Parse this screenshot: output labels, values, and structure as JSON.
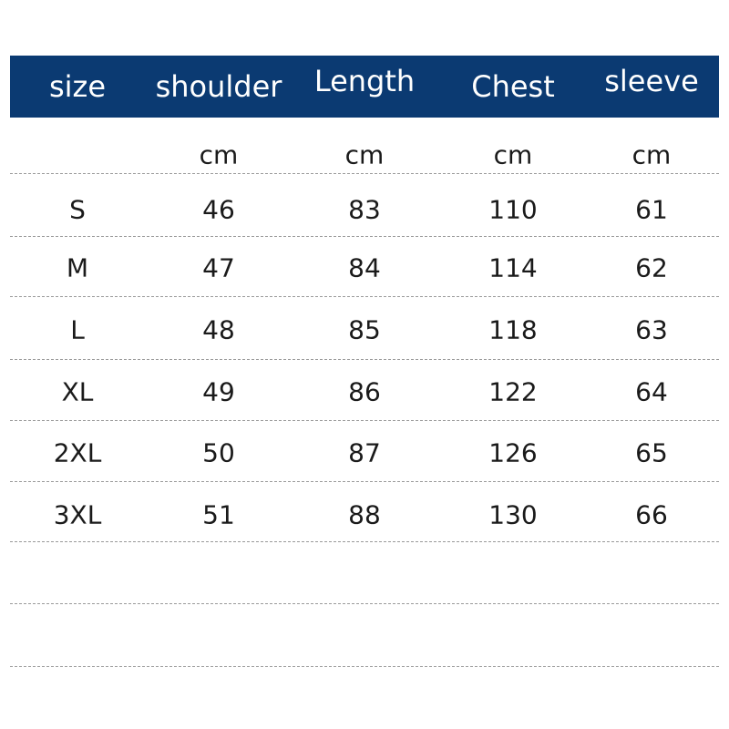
{
  "headers": [
    "size",
    "shoulder",
    "Length",
    "Chest",
    "sleeve"
  ],
  "units": [
    "",
    "cm",
    "cm",
    "cm",
    "cm"
  ],
  "rows": [
    [
      "S",
      "46",
      "83",
      "110",
      "61"
    ],
    [
      "M",
      "47",
      "84",
      "114",
      "62"
    ],
    [
      "L",
      "48",
      "85",
      "118",
      "63"
    ],
    [
      "XL",
      "49",
      "86",
      "122",
      "64"
    ],
    [
      "2XL",
      "50",
      "87",
      "126",
      "65"
    ],
    [
      "3XL",
      "51",
      "88",
      "130",
      "66"
    ]
  ],
  "colors": {
    "header_bg": "#0b3a72",
    "header_text": "#ffffff",
    "divider": "#9a9a9a"
  }
}
